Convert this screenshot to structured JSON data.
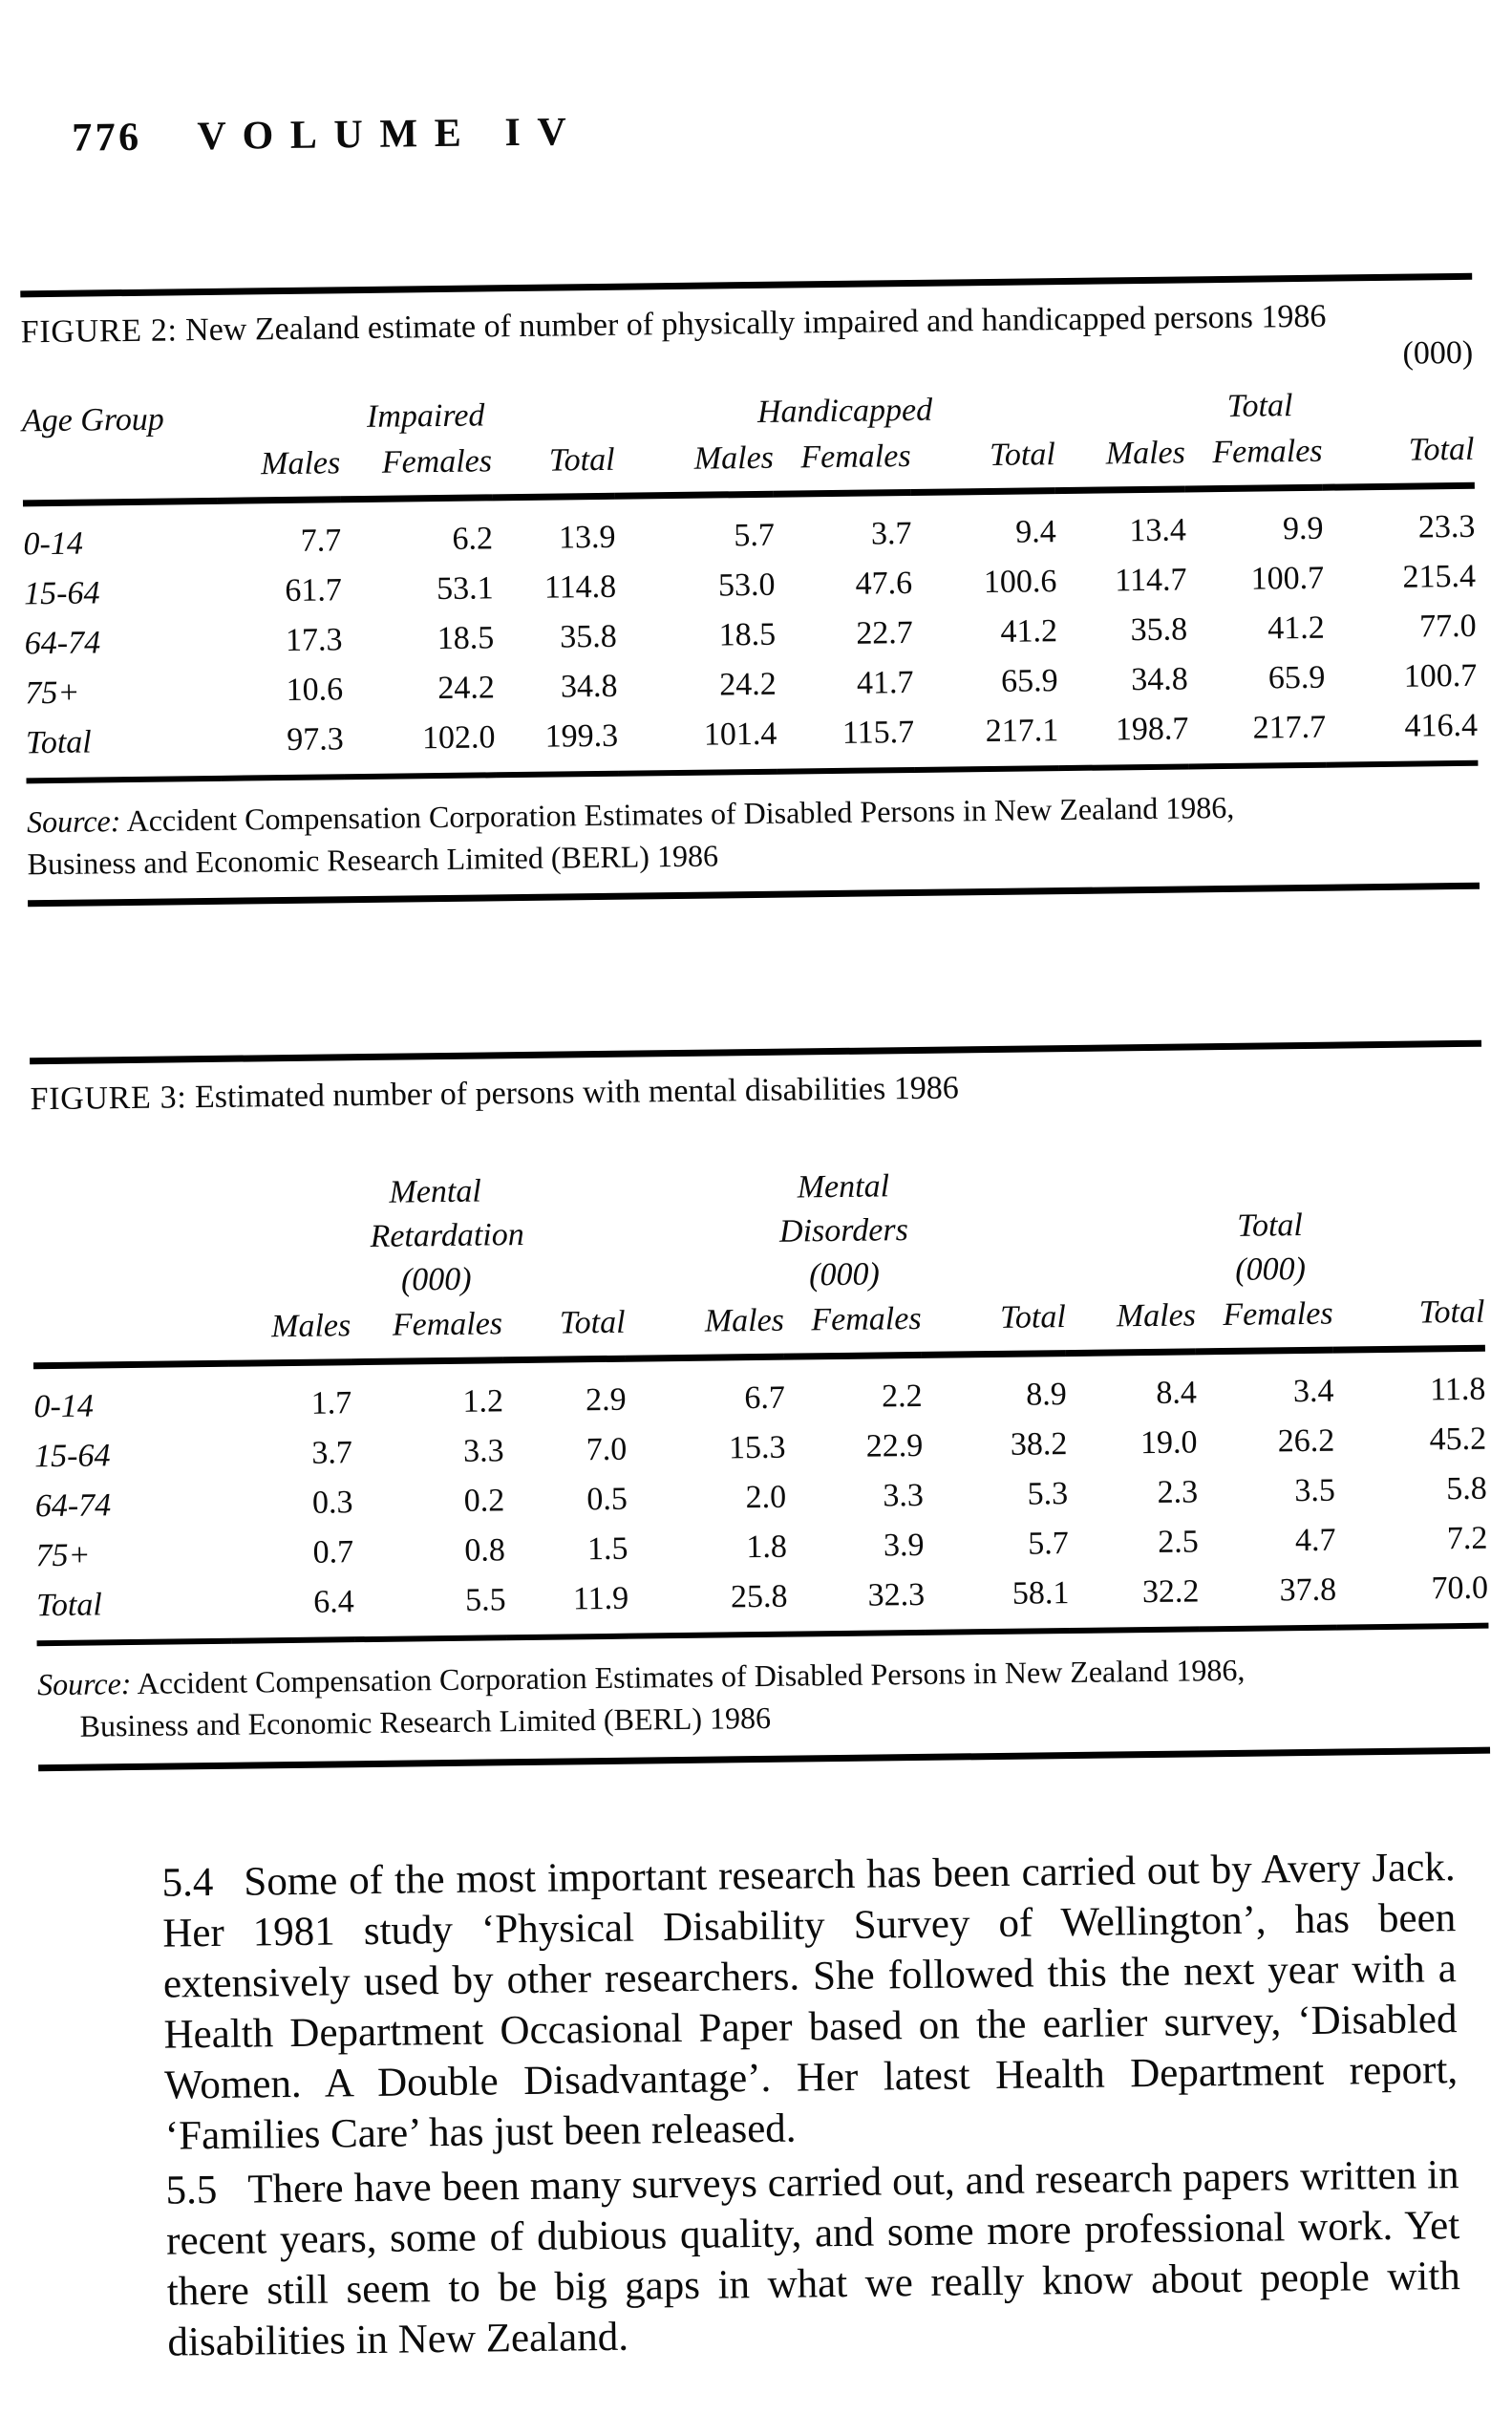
{
  "page_header": {
    "page_number": "776",
    "volume": "VOLUME IV"
  },
  "figure2": {
    "label": "FIGURE 2:",
    "title": "New Zealand estimate of number of physically impaired and handicapped persons 1986",
    "unit": "(000)",
    "row_header": "Age Group",
    "groups": [
      {
        "label": "Impaired"
      },
      {
        "label": "Handicapped"
      },
      {
        "label": "Total"
      }
    ],
    "subcolumns": [
      "Males",
      "Females",
      "Total"
    ],
    "rows": [
      {
        "label": "0-14",
        "values": [
          "7.7",
          "6.2",
          "13.9",
          "5.7",
          "3.7",
          "9.4",
          "13.4",
          "9.9",
          "23.3"
        ]
      },
      {
        "label": "15-64",
        "values": [
          "61.7",
          "53.1",
          "114.8",
          "53.0",
          "47.6",
          "100.6",
          "114.7",
          "100.7",
          "215.4"
        ]
      },
      {
        "label": "64-74",
        "values": [
          "17.3",
          "18.5",
          "35.8",
          "18.5",
          "22.7",
          "41.2",
          "35.8",
          "41.2",
          "77.0"
        ]
      },
      {
        "label": "75+",
        "values": [
          "10.6",
          "24.2",
          "34.8",
          "24.2",
          "41.7",
          "65.9",
          "34.8",
          "65.9",
          "100.7"
        ]
      },
      {
        "label": "Total",
        "values": [
          "97.3",
          "102.0",
          "199.3",
          "101.4",
          "115.7",
          "217.1",
          "198.7",
          "217.7",
          "416.4"
        ]
      }
    ],
    "source": {
      "label": "Source:",
      "line1": "Accident Compensation Corporation Estimates of Disabled Persons in New Zealand 1986,",
      "line2": "Business and Economic Research Limited (BERL) 1986"
    }
  },
  "figure3": {
    "label": "FIGURE 3:",
    "title": "Estimated number of persons with mental disabilities 1986",
    "groups": [
      {
        "label": "Mental Retardation",
        "unit": "(000)"
      },
      {
        "label": "Mental Disorders",
        "unit": "(000)"
      },
      {
        "label": "Total",
        "unit": "(000)"
      }
    ],
    "subcolumns": [
      "Males",
      "Females",
      "Total"
    ],
    "rows": [
      {
        "label": "0-14",
        "values": [
          "1.7",
          "1.2",
          "2.9",
          "6.7",
          "2.2",
          "8.9",
          "8.4",
          "3.4",
          "11.8"
        ]
      },
      {
        "label": "15-64",
        "values": [
          "3.7",
          "3.3",
          "7.0",
          "15.3",
          "22.9",
          "38.2",
          "19.0",
          "26.2",
          "45.2"
        ]
      },
      {
        "label": "64-74",
        "values": [
          "0.3",
          "0.2",
          "0.5",
          "2.0",
          "3.3",
          "5.3",
          "2.3",
          "3.5",
          "5.8"
        ]
      },
      {
        "label": "75+",
        "values": [
          "0.7",
          "0.8",
          "1.5",
          "1.8",
          "3.9",
          "5.7",
          "2.5",
          "4.7",
          "7.2"
        ]
      },
      {
        "label": "Total",
        "values": [
          "6.4",
          "5.5",
          "11.9",
          "25.8",
          "32.3",
          "58.1",
          "32.2",
          "37.8",
          "70.0"
        ]
      }
    ],
    "source": {
      "label": "Source:",
      "line1": "Accident Compensation Corporation Estimates of Disabled Persons in New Zealand 1986,",
      "line2": "Business and Economic Research Limited (BERL) 1986"
    }
  },
  "body": {
    "paragraphs": [
      {
        "number": "5.4",
        "text": "Some of the most important research has been carried out by Avery Jack. Her 1981 study ‘Physical Disability Survey of Wellington’, has been extensively used by other researchers. She followed this the next year with a Health Department Occasional Paper based on the earlier survey, ‘Disabled Women. A Double Disadvantage’. Her latest Health Department report, ‘Families Care’ has just been released."
      },
      {
        "number": "5.5",
        "text": "There have been many surveys carried out, and research papers written in recent years, some of dubious quality, and some more professional work. Yet there still seem to be big gaps in what we really know about people with disabilities in New Zealand."
      }
    ]
  }
}
